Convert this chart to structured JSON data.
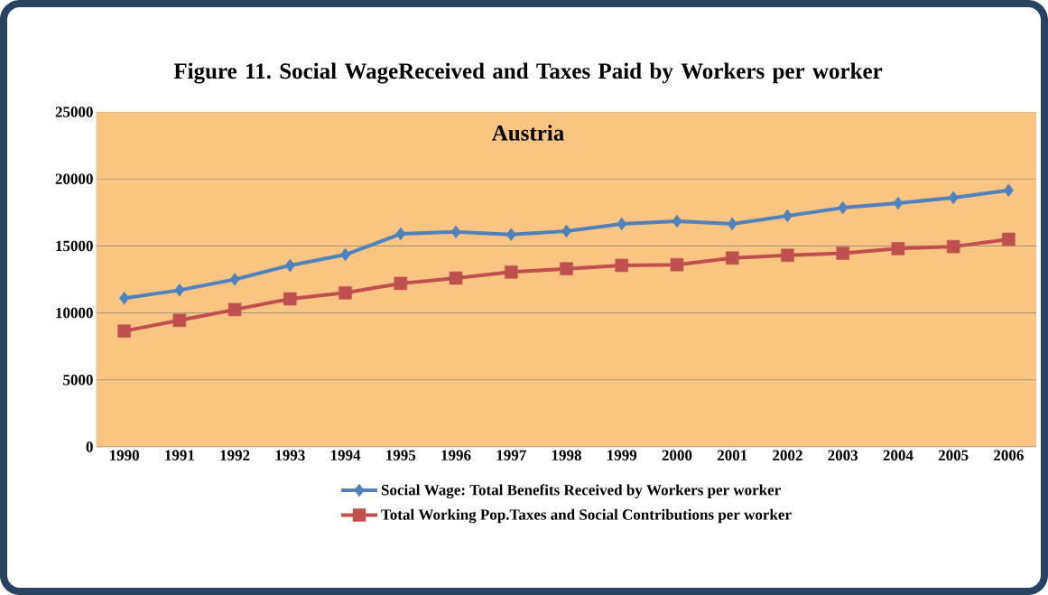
{
  "chart_data": {
    "type": "line",
    "title": "Figure 11. Social WageReceived and Taxes Paid by Workers per worker",
    "subtitle": "Austria",
    "categories": [
      "1990",
      "1991",
      "1992",
      "1993",
      "1994",
      "1995",
      "1996",
      "1997",
      "1998",
      "1999",
      "2000",
      "2001",
      "2002",
      "2003",
      "2004",
      "2005",
      "2006"
    ],
    "series": [
      {
        "name": "Social Wage: Total Benefits Received by Workers per worker",
        "color": "#4f81bd",
        "marker": "diamond",
        "values": [
          11100,
          11700,
          12500,
          13550,
          14350,
          15900,
          16050,
          15850,
          16100,
          16650,
          16850,
          16650,
          17250,
          17850,
          18200,
          18600,
          19150
        ]
      },
      {
        "name": "Total Working Pop.Taxes and Social Contributions per worker",
        "color": "#c0504d",
        "marker": "square",
        "values": [
          8650,
          9450,
          10250,
          11050,
          11500,
          12200,
          12600,
          13050,
          13300,
          13550,
          13600,
          14100,
          14300,
          14450,
          14800,
          14950,
          15500
        ]
      }
    ],
    "ylim": [
      0,
      25000
    ],
    "yticks": [
      0,
      5000,
      10000,
      15000,
      20000,
      25000
    ],
    "grid": "y",
    "legend": "bottom",
    "line_style": "solid"
  }
}
